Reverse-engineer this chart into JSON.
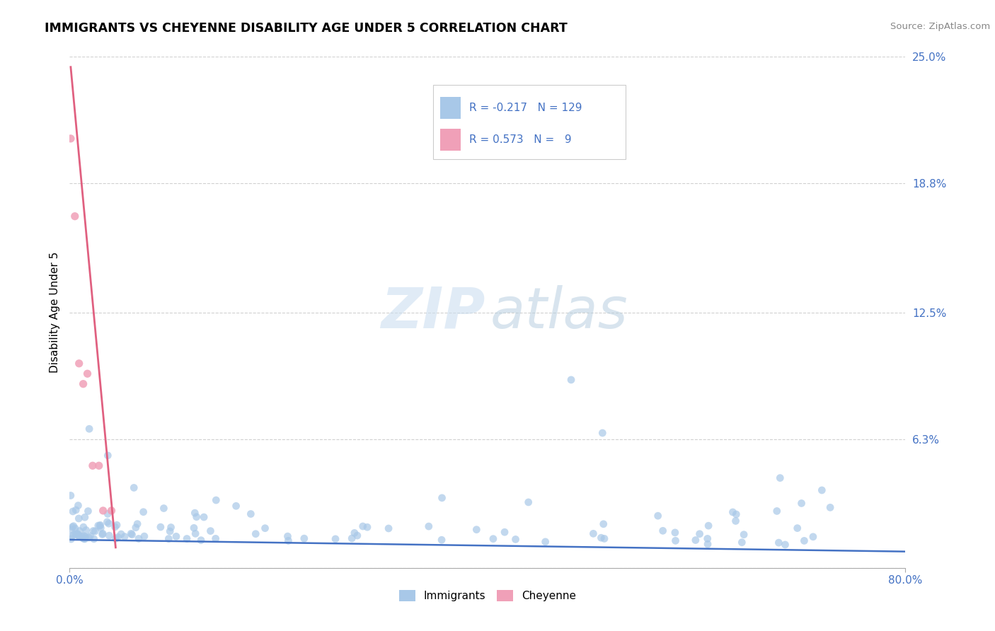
{
  "title": "IMMIGRANTS VS CHEYENNE DISABILITY AGE UNDER 5 CORRELATION CHART",
  "source": "Source: ZipAtlas.com",
  "ylabel": "Disability Age Under 5",
  "xlim": [
    0.0,
    0.8
  ],
  "ylim": [
    0.0,
    0.25
  ],
  "xtick_vals": [
    0.0,
    0.8
  ],
  "xtick_labels": [
    "0.0%",
    "80.0%"
  ],
  "ytick_vals": [
    0.0,
    0.063,
    0.125,
    0.188,
    0.25
  ],
  "ytick_labels": [
    "",
    "6.3%",
    "12.5%",
    "18.8%",
    "25.0%"
  ],
  "imm_color": "#a8c8e8",
  "chey_color": "#f0a0b8",
  "imm_line_color": "#4472c4",
  "chey_line_color": "#e06080",
  "grid_color": "#d0d0d0",
  "bg_color": "#ffffff",
  "tick_color": "#4472c4",
  "scatter_size": 60,
  "imm_R": "-0.217",
  "imm_N": "129",
  "chey_R": "0.573",
  "chey_N": "9",
  "watermark_zip": "ZIP",
  "watermark_atlas": "atlas"
}
